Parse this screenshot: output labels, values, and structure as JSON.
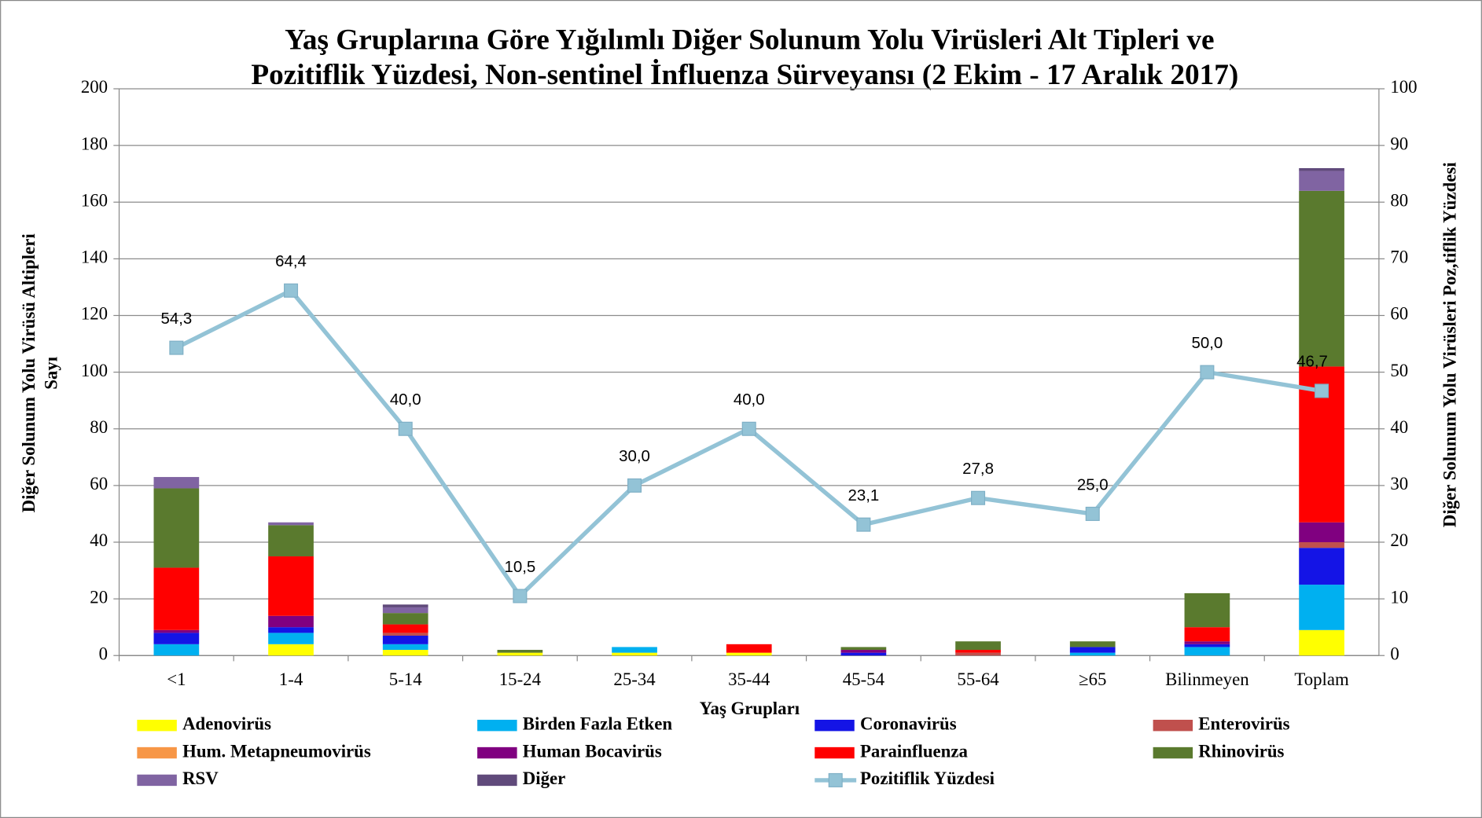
{
  "chart_data": {
    "type": "bar",
    "title": [
      "Yaş Gruplarına Göre Yığılımlı Diğer Solunum Yolu Virüsleri Alt Tipleri ve",
      "Pozitiflik Yüzdesi, Non-sentinel İnfluenza Sürveyansı (2 Ekim - 17 Aralık 2017)"
    ],
    "x_label": "Yaş Grupları",
    "y_label": [
      "Diğer Solunum Yolu Virüsü Altipleri",
      "Sayı"
    ],
    "y2_label": "Diğer Solunum Yolu Virüsleri Poz,tiflik Yüzdesi",
    "categories": [
      "<1",
      "1-4",
      "5-14",
      "15-24",
      "25-34",
      "35-44",
      "45-54",
      "55-64",
      "≥65",
      "Bilinmeyen",
      "Toplam"
    ],
    "ylim": [
      0,
      200
    ],
    "yticks": [
      0,
      20,
      40,
      60,
      80,
      100,
      120,
      140,
      160,
      180,
      200
    ],
    "y2lim": [
      0,
      100
    ],
    "y2ticks": [
      0,
      10,
      20,
      30,
      40,
      50,
      60,
      70,
      80,
      90,
      100
    ],
    "grid": true,
    "stacked": true,
    "legend": "bottom",
    "series": [
      {
        "name": "Adenovirüs",
        "color": "#ffff00",
        "values": [
          0,
          4,
          2,
          1,
          1,
          1,
          0,
          0,
          0,
          0,
          9
        ]
      },
      {
        "name": "Birden Fazla Etken",
        "color": "#00b0f0",
        "values": [
          4,
          4,
          2,
          0,
          2,
          0,
          0,
          0,
          1,
          3,
          16
        ]
      },
      {
        "name": "Coronavirüs",
        "color": "#1414e6",
        "values": [
          4,
          2,
          3,
          0,
          0,
          0,
          1,
          0,
          2,
          1,
          13
        ]
      },
      {
        "name": "Enterovirüs",
        "color": "#c0504d",
        "values": [
          0,
          0,
          1,
          0,
          0,
          0,
          0,
          1,
          0,
          0,
          2
        ]
      },
      {
        "name": "Hum. Metapneumovirüs",
        "color": "#f79646",
        "values": [
          0,
          0,
          0,
          0,
          0,
          0,
          0,
          0,
          0,
          0,
          0
        ]
      },
      {
        "name": "Human Bocavirüs",
        "color": "#800080",
        "values": [
          1,
          4,
          0,
          0,
          0,
          0,
          1,
          0,
          0,
          1,
          7
        ]
      },
      {
        "name": "Parainfluenza",
        "color": "#ff0000",
        "values": [
          22,
          21,
          3,
          0,
          0,
          3,
          0,
          1,
          0,
          5,
          55
        ]
      },
      {
        "name": "Rhinovirüs",
        "color": "#5a7a2e",
        "values": [
          28,
          11,
          4,
          1,
          0,
          0,
          1,
          3,
          2,
          12,
          62
        ]
      },
      {
        "name": "RSV",
        "color": "#8064a2",
        "values": [
          4,
          1,
          2,
          0,
          0,
          0,
          0,
          0,
          0,
          0,
          7
        ]
      },
      {
        "name": "Diğer",
        "color": "#604a7b",
        "values": [
          0,
          0,
          1,
          0,
          0,
          0,
          0,
          0,
          0,
          0,
          1
        ]
      },
      {
        "name": "Pozitiflik Yüzdesi",
        "color": "#93c3d6",
        "type": "line",
        "axis": "y2",
        "values": [
          54.3,
          64.4,
          40.0,
          10.5,
          30.0,
          40.0,
          23.1,
          27.8,
          25.0,
          50.0,
          46.7
        ],
        "value_labels": [
          "54,3",
          "64,4",
          "40,0",
          "10,5",
          "30,0",
          "40,0",
          "23,1",
          "27,8",
          "25,0",
          "50,0",
          "46,7"
        ]
      }
    ]
  }
}
